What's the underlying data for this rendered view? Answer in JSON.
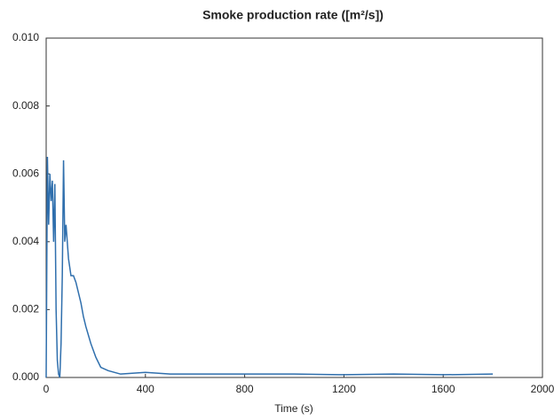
{
  "chart_data": {
    "type": "line",
    "title": "Smoke production rate ([m²/s])",
    "x_label": "Time (s)",
    "x": [
      0,
      5,
      10,
      15,
      20,
      25,
      30,
      35,
      40,
      45,
      50,
      55,
      60,
      65,
      70,
      75,
      80,
      90,
      100,
      110,
      120,
      130,
      140,
      150,
      160,
      180,
      200,
      220,
      250,
      300,
      400,
      500,
      600,
      800,
      1000,
      1200,
      1400,
      1600,
      1800
    ],
    "series": [
      {
        "color": "#2f6fad",
        "values": [
          0,
          0.0065,
          0.0045,
          0.006,
          0.0052,
          0.0058,
          0.004,
          0.0057,
          0.002,
          0.0005,
          0.0001,
          0,
          0.001,
          0.003,
          0.0064,
          0.004,
          0.0045,
          0.0035,
          0.003,
          0.003,
          0.0028,
          0.0025,
          0.0022,
          0.0018,
          0.0015,
          0.001,
          0.0006,
          0.0003,
          0.0002,
          0.0001,
          0.00015,
          0.0001,
          0.0001,
          0.0001,
          0.0001,
          8e-05,
          0.0001,
          8e-05,
          0.0001
        ]
      }
    ],
    "xlim": [
      0,
      2000
    ],
    "xticks": [
      0,
      400,
      800,
      1200,
      1600,
      2000
    ],
    "ylim": [
      0,
      0.01
    ],
    "yticks": [
      {
        "value": 0,
        "label": "0.000"
      },
      {
        "value": 0.002,
        "label": "0.002"
      },
      {
        "value": 0.004,
        "label": "0.004"
      },
      {
        "value": 0.006,
        "label": "0.006"
      },
      {
        "value": 0.008,
        "label": "0.008"
      },
      {
        "value": 0.01,
        "label": "0.010"
      }
    ],
    "grid": false
  }
}
